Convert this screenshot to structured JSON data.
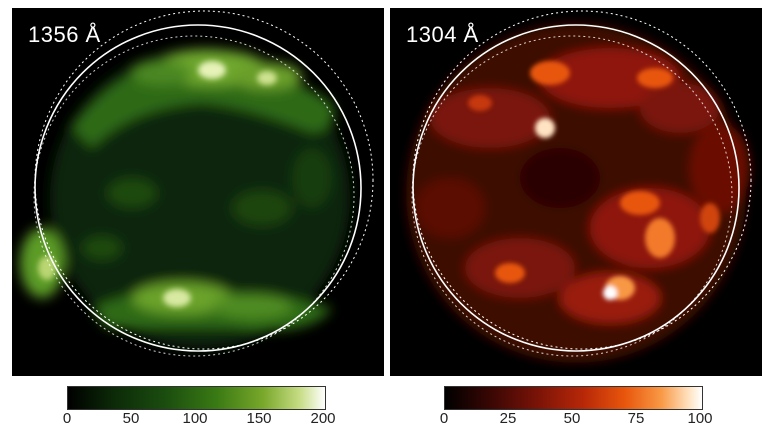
{
  "panels": [
    {
      "label": "1356 Å",
      "colorbar_ticks": [
        "0",
        "50",
        "100",
        "150",
        "200"
      ],
      "colormap": [
        "#000000",
        "#0c2a08",
        "#1b4d0f",
        "#3a7a14",
        "#79a82b",
        "#c6dc83",
        "#ffffff"
      ]
    },
    {
      "label": "1304 Å",
      "colorbar_ticks": [
        "0",
        "25",
        "50",
        "75",
        "100"
      ],
      "colormap": [
        "#000000",
        "#3a0704",
        "#7a1307",
        "#b82808",
        "#e8560c",
        "#f89845",
        "#ffe3c2",
        "#ffffff"
      ]
    }
  ]
}
